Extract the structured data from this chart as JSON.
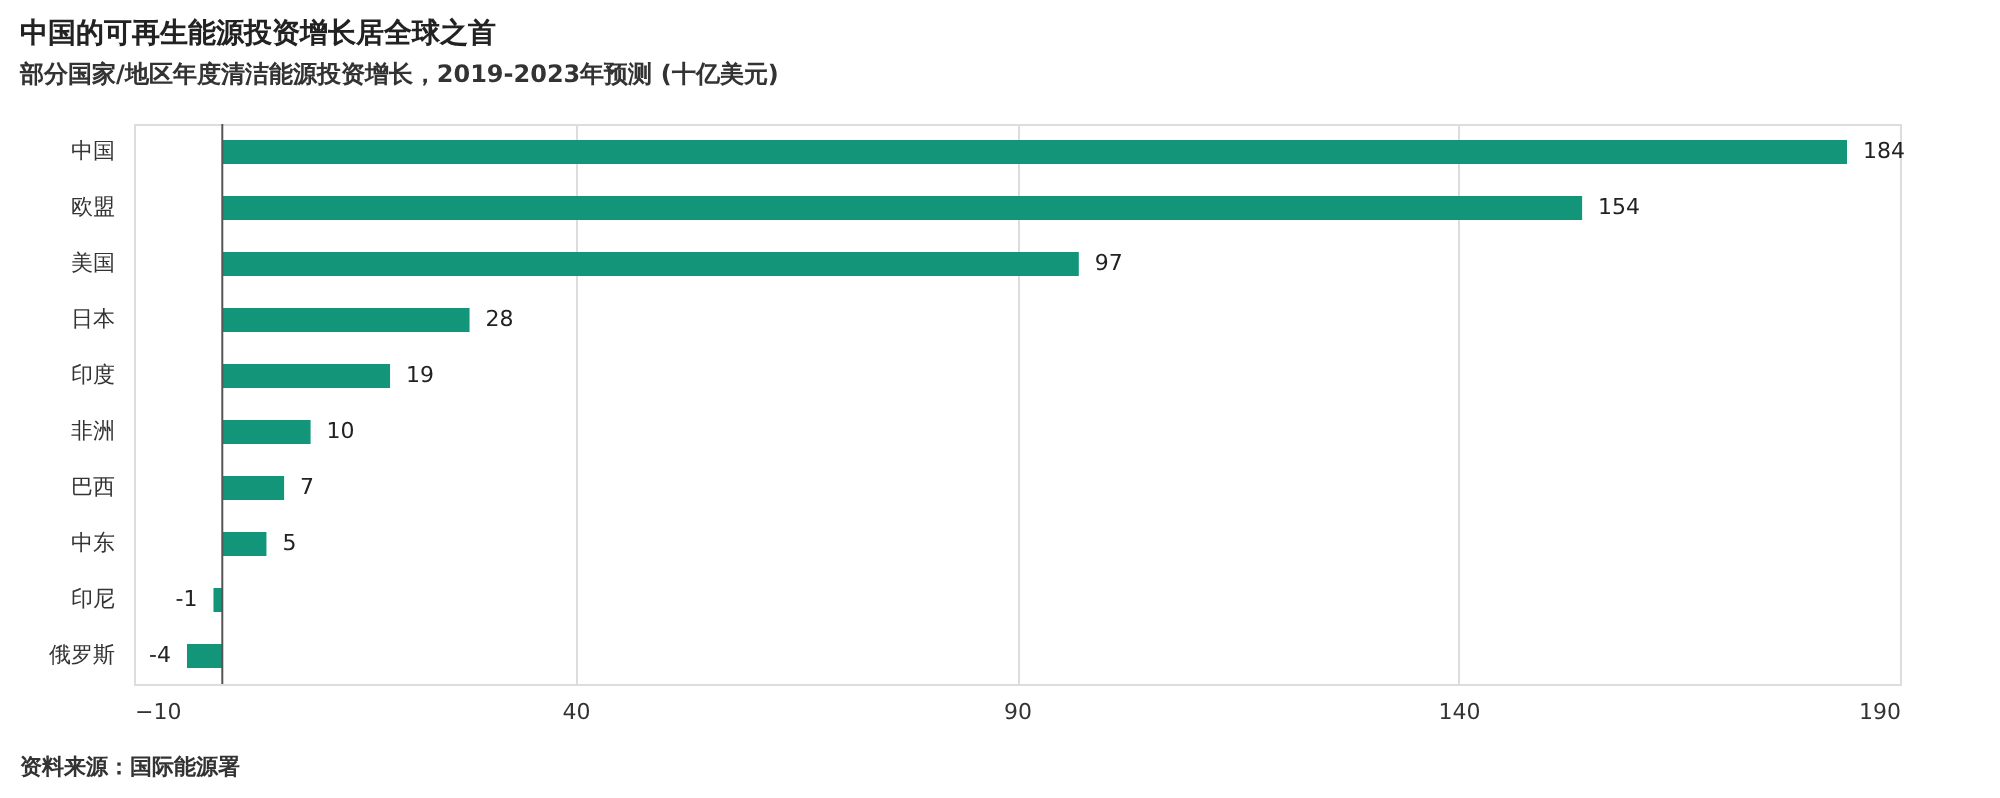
{
  "chart_data": {
    "type": "bar",
    "orientation": "horizontal",
    "title": "中国的可再生能源投资增长居全球之首",
    "subtitle": "部分国家/地区年度清洁能源投资增长，2019-2023年预测 (十亿美元)",
    "categories": [
      "中国",
      "欧盟",
      "美国",
      "日本",
      "印度",
      "非洲",
      "巴西",
      "中东",
      "印尼",
      "俄罗斯"
    ],
    "values": [
      184,
      154,
      97,
      28,
      19,
      10,
      7,
      5,
      -1,
      -4
    ],
    "color": "#13957a",
    "xlim": [
      -10,
      190
    ],
    "xticks": [
      -10,
      40,
      90,
      140,
      190
    ],
    "grid": "x",
    "data_labels": true,
    "annotations": [
      "资料来源：国际能源署"
    ]
  }
}
